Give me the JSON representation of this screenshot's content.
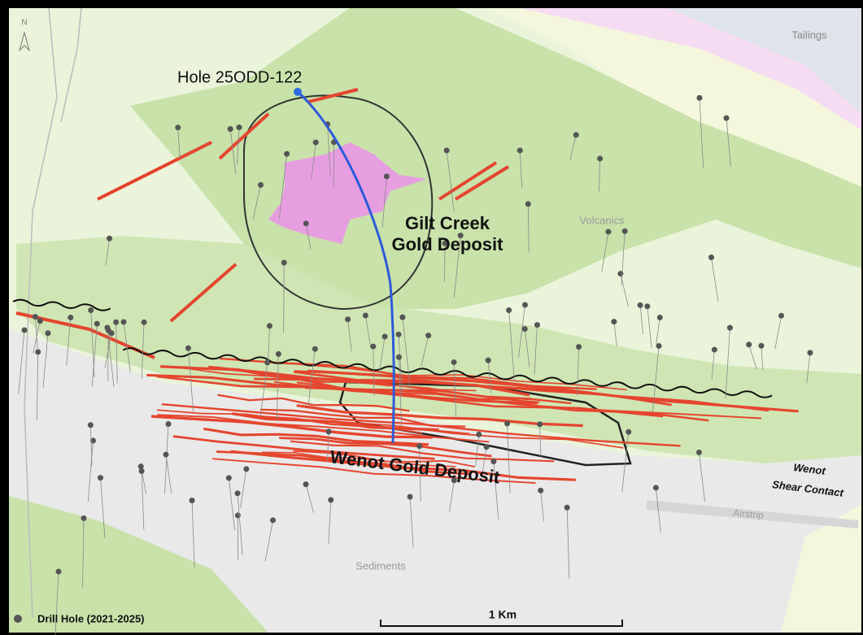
{
  "map": {
    "north_arrow": "N",
    "labels": {
      "tailings": "Tailings",
      "hole": "Hole 25ODD-122",
      "gilt_creek": [
        "Gilt Creek",
        "Gold Deposit"
      ],
      "volcanics": "Volcanics",
      "wenot_deposit": "Wenot Gold Deposit",
      "shear_contact": [
        "Wenot",
        "Shear Contact"
      ],
      "airstrip": "Airstrip",
      "sediments": "Sediments"
    },
    "legend": {
      "drill_hole": "Drill Hole (2021-2025)"
    },
    "scale_bar": "1 Km"
  }
}
